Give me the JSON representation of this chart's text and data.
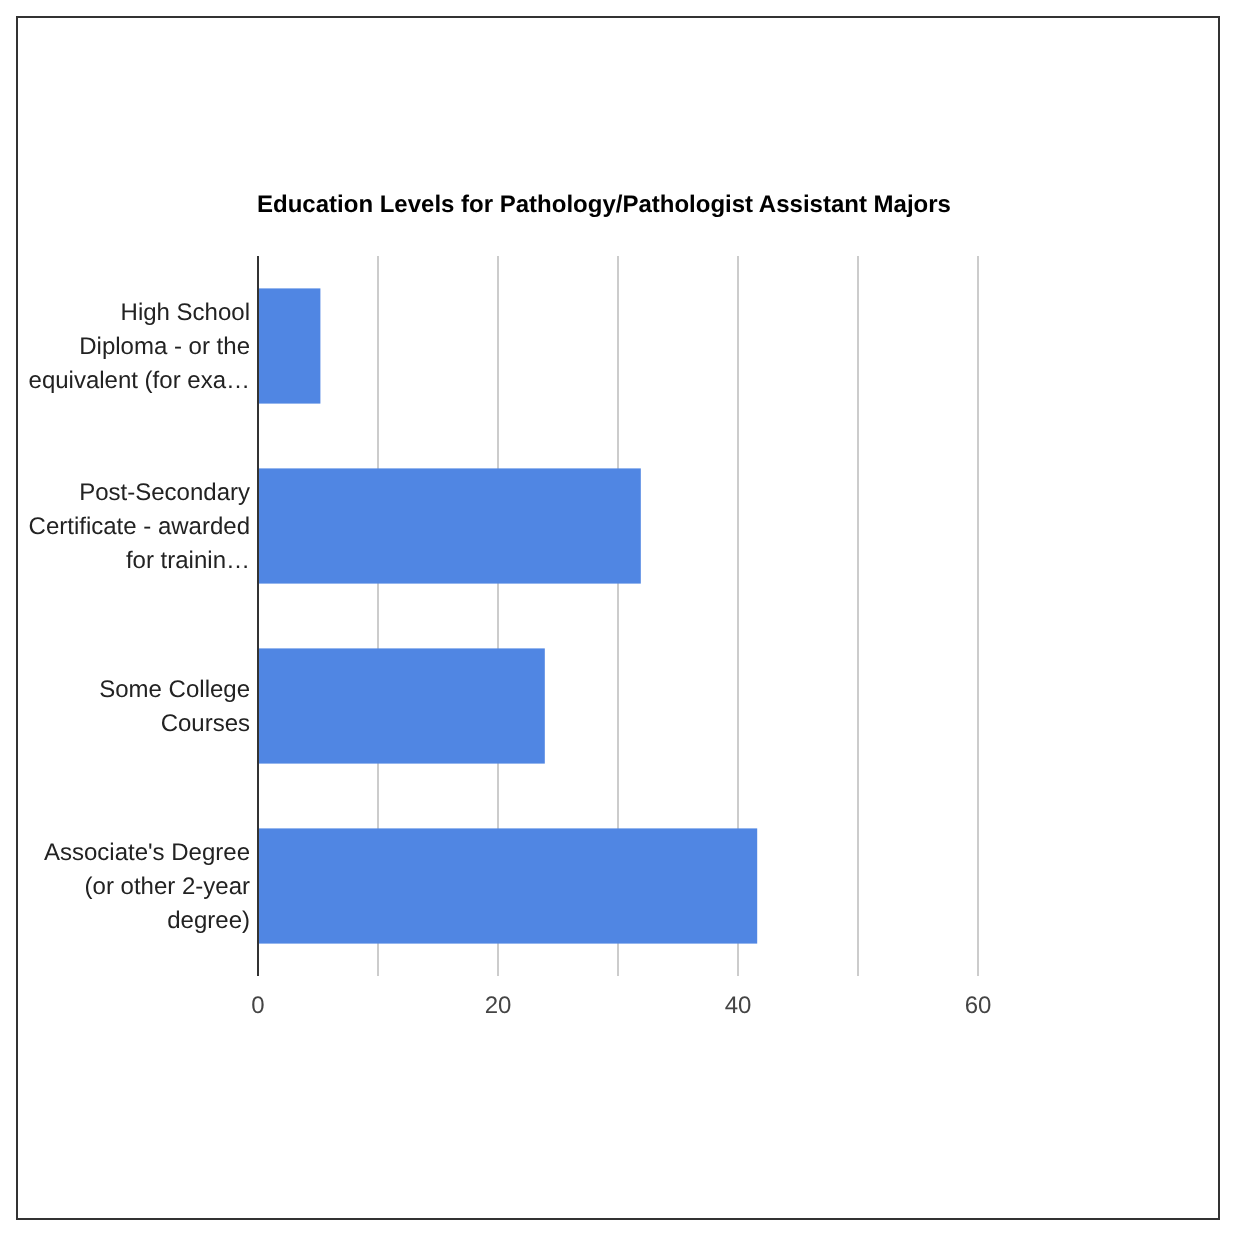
{
  "chart_data": {
    "type": "bar",
    "orientation": "horizontal",
    "title": "Education Levels for Pathology/Pathologist Assistant Majors",
    "categories": [
      "High School Diploma - or the equivalent (for exa…",
      "Post-Secondary Certificate - awarded for trainin…",
      "Some College Courses",
      "Associate's Degree (or other 2-year degree)"
    ],
    "values": [
      5.2,
      31.9,
      23.9,
      41.6
    ],
    "color": "#5086e3",
    "xlim": [
      0,
      60
    ],
    "xticks": [
      0,
      {
        "value": 10,
        "label": null
      },
      20,
      {
        "value": 30,
        "label": null
      },
      40,
      {
        "value": 50,
        "label": null
      },
      60
    ],
    "grid": "x"
  }
}
